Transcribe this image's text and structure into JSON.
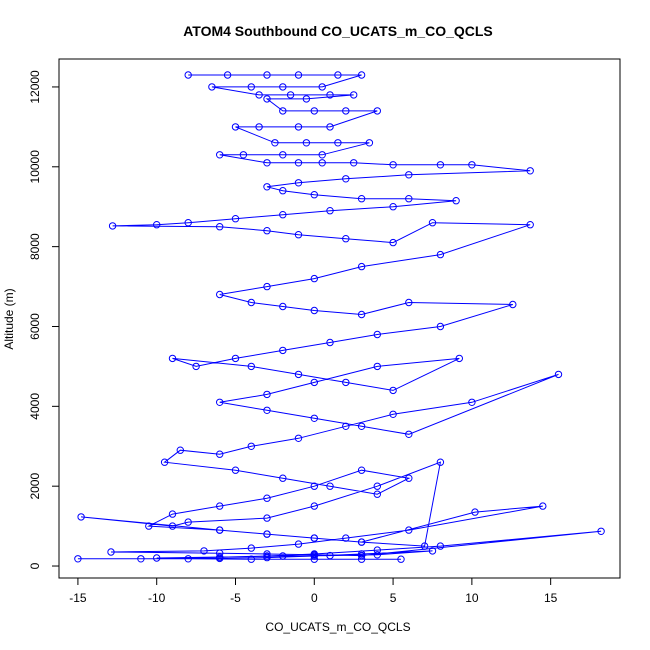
{
  "chart_data": {
    "type": "scatter",
    "title": "ATOM4 Southbound CO_UCATS_m_CO_QCLS",
    "xlabel": "CO_UCATS_m_CO_QCLS",
    "ylabel": "Altitude (m)",
    "xlim": [
      -16.2,
      19.4
    ],
    "ylim": [
      -300,
      12700
    ],
    "xticks": [
      -15,
      -10,
      -5,
      0,
      5,
      10,
      15
    ],
    "yticks": [
      0,
      2000,
      4000,
      6000,
      8000,
      10000,
      12000
    ],
    "grid": false,
    "legend": "none",
    "line_connected": true,
    "marker": "open-circle",
    "color": "#0000ff",
    "series": [
      {
        "name": "",
        "x": [
          -8.0,
          -5.5,
          -3.0,
          -1.0,
          1.5,
          3.0,
          0.5,
          -2.0,
          -4.0,
          -6.5,
          -3.5,
          -1.5,
          1.0,
          2.5,
          -0.5,
          -3.0,
          -2.0,
          0.0,
          2.0,
          4.0,
          1.0,
          -1.0,
          -3.5,
          -5.0,
          -2.5,
          -0.5,
          1.5,
          3.5,
          0.5,
          -2.0,
          -4.5,
          -6.0,
          -3.0,
          -1.0,
          0.5,
          2.5,
          5.0,
          8.0,
          10.0,
          13.7,
          6.0,
          2.0,
          -1.0,
          -3.0,
          -2.0,
          0.0,
          3.0,
          6.0,
          9.0,
          5.0,
          1.0,
          -2.0,
          -5.0,
          -8.0,
          -10.0,
          -12.8,
          -6.0,
          -3.0,
          -1.0,
          2.0,
          5.0,
          7.5,
          13.7,
          8.0,
          3.0,
          0.0,
          -3.0,
          -6.0,
          -4.0,
          -2.0,
          0.0,
          3.0,
          6.0,
          12.6,
          8.0,
          4.0,
          1.0,
          -2.0,
          -5.0,
          -7.5,
          -9.0,
          -4.0,
          -1.0,
          2.0,
          5.0,
          9.2,
          4.0,
          0.0,
          -3.0,
          -6.0,
          -3.0,
          0.0,
          3.0,
          6.0,
          15.5,
          10.0,
          5.0,
          2.0,
          -1.0,
          -4.0,
          -6.0,
          -8.5,
          -9.5,
          -5.0,
          -2.0,
          1.0,
          4.0,
          6.0,
          3.0,
          0.0,
          -3.0,
          -6.0,
          -9.0,
          -10.5,
          -6.0,
          -3.0,
          0.0,
          3.0,
          7.0,
          8.0,
          4.0,
          0.0,
          -3.0,
          -8.0,
          -9.0,
          -14.8,
          -6.0,
          -3.0,
          0.0,
          3.0,
          10.2,
          14.5,
          6.0,
          2.0,
          -1.0,
          -4.0,
          -7.0,
          -12.9,
          -6.0,
          -3.0,
          0.0,
          3.0,
          18.2,
          8.0,
          4.0,
          0.0,
          -3.0,
          -6.0,
          -10.0,
          -2.0,
          1.0,
          4.0,
          7.5,
          3.0,
          0.0,
          -3.0,
          -6.0,
          -11.0,
          -15.0,
          -8.0,
          -4.0,
          0.0,
          3.0,
          5.5
        ],
        "y": [
          12300,
          12300,
          12300,
          12300,
          12300,
          12300,
          12000,
          12000,
          12000,
          12000,
          11800,
          11800,
          11800,
          11800,
          11700,
          11700,
          11400,
          11400,
          11400,
          11400,
          11000,
          11000,
          11000,
          11000,
          10600,
          10600,
          10600,
          10600,
          10300,
          10300,
          10300,
          10300,
          10100,
          10100,
          10100,
          10100,
          10050,
          10050,
          10050,
          9900,
          9800,
          9700,
          9600,
          9500,
          9400,
          9300,
          9200,
          9200,
          9150,
          9000,
          8900,
          8800,
          8700,
          8600,
          8550,
          8520,
          8500,
          8400,
          8300,
          8200,
          8100,
          8600,
          8550,
          7800,
          7500,
          7200,
          7000,
          6800,
          6600,
          6500,
          6400,
          6300,
          6600,
          6550,
          6000,
          5800,
          5600,
          5400,
          5200,
          5000,
          5200,
          5000,
          4800,
          4600,
          4400,
          5200,
          5000,
          4600,
          4300,
          4100,
          3900,
          3700,
          3500,
          3300,
          4800,
          4100,
          3800,
          3500,
          3200,
          3000,
          2800,
          2900,
          2600,
          2400,
          2200,
          2000,
          1800,
          2200,
          2400,
          2000,
          1700,
          1500,
          1300,
          1000,
          900,
          800,
          700,
          600,
          500,
          2600,
          2000,
          1500,
          1200,
          1100,
          1000,
          1230,
          900,
          800,
          700,
          600,
          1350,
          1500,
          900,
          700,
          550,
          450,
          380,
          350,
          320,
          300,
          280,
          260,
          870,
          500,
          400,
          300,
          250,
          220,
          200,
          250,
          260,
          280,
          380,
          300,
          250,
          210,
          190,
          180,
          180,
          180,
          170,
          170,
          170,
          170
        ]
      }
    ]
  }
}
